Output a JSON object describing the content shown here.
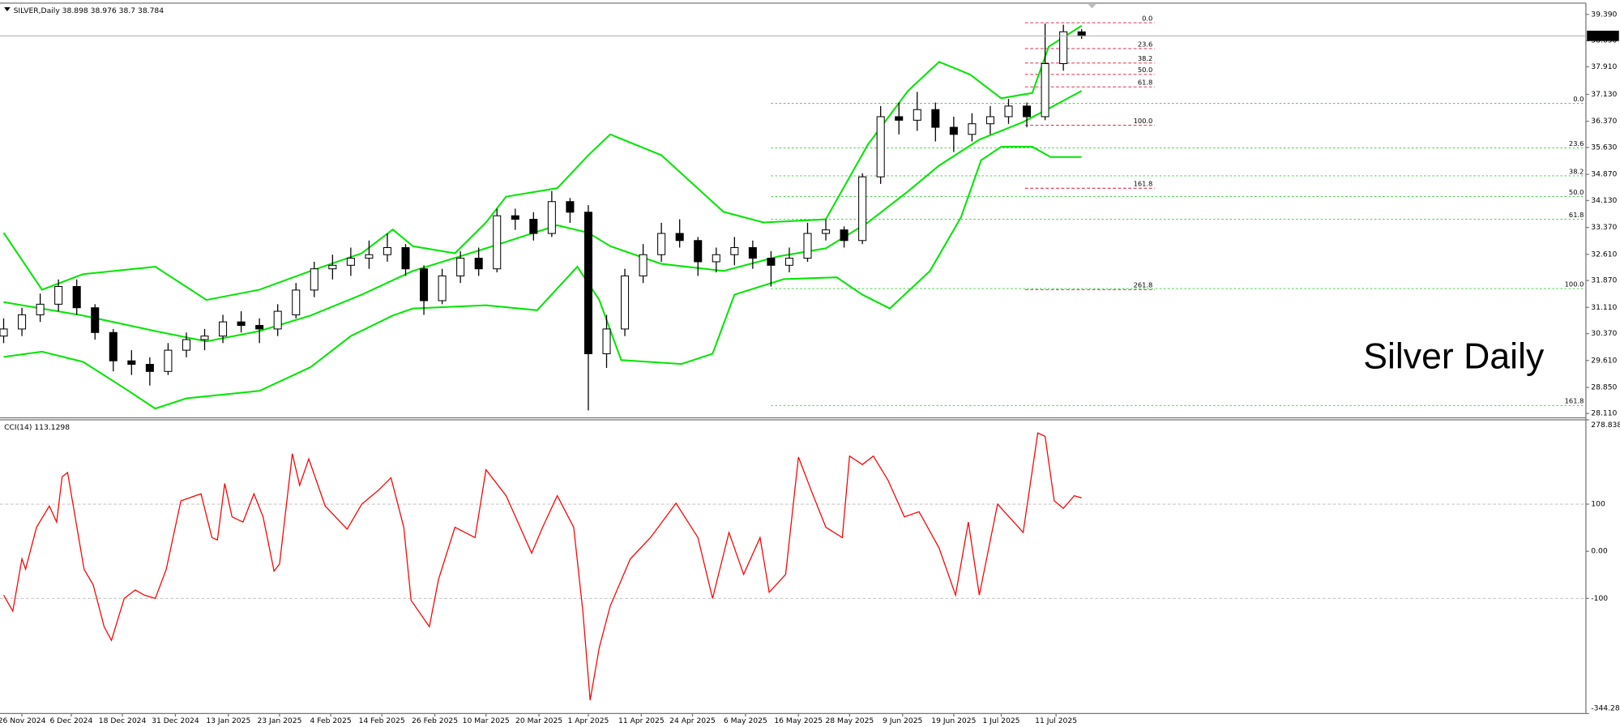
{
  "chart_data": [
    {
      "type": "candlestick",
      "symbol": "SILVER,Daily",
      "annotation": "Silver Daily",
      "xlim": [
        -0.2,
        86.6
      ],
      "ylim": [
        27.99,
        39.71
      ],
      "yticks": [
        {
          "value": 39.39,
          "label": "39.390"
        },
        {
          "value": 38.65,
          "label": "38.650"
        },
        {
          "value": 37.91,
          "label": "37.910"
        },
        {
          "value": 37.13,
          "label": "37.130"
        },
        {
          "value": 36.37,
          "label": "36.370"
        },
        {
          "value": 35.63,
          "label": "35.630"
        },
        {
          "value": 34.87,
          "label": "34.870"
        },
        {
          "value": 34.13,
          "label": "34.130"
        },
        {
          "value": 33.37,
          "label": "33.370"
        },
        {
          "value": 32.61,
          "label": "32.610"
        },
        {
          "value": 31.87,
          "label": "31.870"
        },
        {
          "value": 31.11,
          "label": "31.110"
        },
        {
          "value": 30.37,
          "label": "30.370"
        },
        {
          "value": 29.61,
          "label": "29.610"
        },
        {
          "value": 28.85,
          "label": "28.850"
        },
        {
          "value": 28.11,
          "label": "28.110"
        }
      ],
      "up_color": "#ffffff",
      "down_color": "#000000",
      "line_color": "#000000",
      "open": [
        30.3,
        30.5,
        30.9,
        31.2,
        31.7,
        31.1,
        30.4,
        29.6,
        29.5,
        29.3,
        29.9,
        30.2,
        30.3,
        30.7,
        30.6,
        30.5,
        30.9,
        31.6,
        32.2,
        32.3,
        32.5,
        32.6,
        32.8,
        32.2,
        31.3,
        32.0,
        32.5,
        32.2,
        33.7,
        33.6,
        33.2,
        34.1,
        33.8,
        29.8,
        30.5,
        32.0,
        32.6,
        33.2,
        33.0,
        32.4,
        32.6,
        32.8,
        32.5,
        32.3,
        32.5,
        33.2,
        33.3,
        33.0,
        34.8,
        36.5,
        36.4,
        36.7,
        36.2,
        36.0,
        36.3,
        36.5,
        36.8,
        36.5,
        38.0,
        38.898
      ],
      "high": [
        30.8,
        31.1,
        31.5,
        31.9,
        31.9,
        31.2,
        30.5,
        29.9,
        29.7,
        30.1,
        30.4,
        30.5,
        30.9,
        31.0,
        30.8,
        31.2,
        31.8,
        32.4,
        32.6,
        32.8,
        33.0,
        33.2,
        32.9,
        32.3,
        32.2,
        32.7,
        32.8,
        33.9,
        33.9,
        33.8,
        34.4,
        34.2,
        34.0,
        30.9,
        32.2,
        32.9,
        33.5,
        33.6,
        33.1,
        32.8,
        33.1,
        33.0,
        32.7,
        32.8,
        33.5,
        33.6,
        33.4,
        34.9,
        36.8,
        36.9,
        37.2,
        36.9,
        36.5,
        36.6,
        36.8,
        37.0,
        36.9,
        39.13,
        39.1,
        38.976
      ],
      "low": [
        30.1,
        30.3,
        30.7,
        31.0,
        30.9,
        30.2,
        29.3,
        29.2,
        28.9,
        29.2,
        29.7,
        29.9,
        30.1,
        30.4,
        30.1,
        30.3,
        30.8,
        31.4,
        31.9,
        32.0,
        32.2,
        32.4,
        32.0,
        30.9,
        31.2,
        31.8,
        32.0,
        32.1,
        33.3,
        33.0,
        33.1,
        33.5,
        28.2,
        29.4,
        30.3,
        31.8,
        32.4,
        32.8,
        32.0,
        32.1,
        32.3,
        32.2,
        31.7,
        32.1,
        32.4,
        33.0,
        32.8,
        32.9,
        34.6,
        36.0,
        36.1,
        35.8,
        35.5,
        35.8,
        36.0,
        36.3,
        36.2,
        36.4,
        37.8,
        38.7
      ],
      "close": [
        30.5,
        30.9,
        31.2,
        31.7,
        31.1,
        30.4,
        29.6,
        29.5,
        29.3,
        29.9,
        30.2,
        30.3,
        30.7,
        30.6,
        30.5,
        31.0,
        31.6,
        32.2,
        32.3,
        32.5,
        32.6,
        32.8,
        32.2,
        31.3,
        32.0,
        32.5,
        32.2,
        33.7,
        33.6,
        33.2,
        34.1,
        33.8,
        29.8,
        30.5,
        32.0,
        32.6,
        33.2,
        33.0,
        32.4,
        32.6,
        32.8,
        32.5,
        32.3,
        32.5,
        33.2,
        33.3,
        33.0,
        34.8,
        36.5,
        36.4,
        36.7,
        36.2,
        36.0,
        36.3,
        36.5,
        36.8,
        36.5,
        38.0,
        38.9,
        38.784
      ],
      "bands": [
        {
          "color": "#00e600",
          "x": [
            0,
            2.1,
            4.35,
            8.3,
            11.1,
            14.0,
            16.8,
            19.6,
            21.3,
            22.4,
            24.7,
            26.4,
            27.5,
            30.3,
            32.0,
            33.2,
            36.0,
            39.4,
            41.6,
            45.0,
            47.3,
            49.5,
            51.2,
            52.9,
            54.6,
            56.3,
            57.2,
            59.0
          ],
          "values": [
            33.22,
            31.61,
            32.05,
            32.26,
            31.32,
            31.61,
            32.14,
            32.64,
            33.31,
            32.84,
            32.64,
            33.51,
            34.24,
            34.48,
            35.41,
            36.0,
            35.41,
            33.81,
            33.51,
            33.6,
            35.71,
            37.23,
            38.05,
            37.69,
            37.02,
            37.17,
            38.48,
            39.07
          ]
        },
        {
          "color": "#00e600",
          "x": [
            0,
            4.35,
            8.3,
            11.1,
            14.0,
            16.8,
            19.6,
            22.4,
            26.4,
            30.3,
            32.0,
            33.2,
            36.0,
            39.4,
            42.4,
            45.0,
            47.3,
            49.5,
            51.2,
            53.4,
            55.8,
            57.2,
            59.0
          ],
          "values": [
            31.26,
            30.88,
            30.44,
            30.15,
            30.44,
            30.88,
            31.47,
            32.14,
            32.78,
            33.43,
            33.22,
            32.84,
            32.34,
            32.14,
            32.55,
            32.78,
            33.51,
            34.39,
            35.12,
            35.85,
            36.35,
            36.73,
            37.23
          ]
        },
        {
          "color": "#00e600",
          "x": [
            0,
            2.1,
            4.35,
            6.6,
            8.3,
            10.0,
            14.0,
            16.8,
            19.0,
            21.3,
            22.4,
            26.4,
            29.2,
            31.4,
            32.6,
            33.8,
            37.1,
            38.8,
            40.0,
            42.7,
            45.6,
            47.0,
            48.5,
            50.7,
            52.4,
            53.5,
            54.6,
            56.3,
            57.3,
            59.0
          ],
          "values": [
            29.71,
            29.86,
            29.57,
            28.83,
            28.25,
            28.54,
            28.75,
            29.42,
            30.3,
            30.88,
            31.08,
            31.17,
            31.03,
            32.26,
            31.32,
            29.62,
            29.51,
            29.8,
            31.47,
            31.91,
            31.96,
            31.47,
            31.08,
            32.14,
            33.66,
            35.27,
            35.65,
            35.65,
            35.36,
            35.36
          ]
        }
      ],
      "fib_sets": [
        {
          "color": "#dc143c",
          "dash": "3,2",
          "from": 55.9,
          "to": 63.0,
          "levels": [
            {
              "label": "0.0",
              "price": 39.156
            },
            {
              "label": "23.6",
              "price": 38.425
            },
            {
              "label": "38.2",
              "price": 38.016
            },
            {
              "label": "50.0",
              "price": 37.694
            },
            {
              "label": "61.8",
              "price": 37.343
            },
            {
              "label": "100.0",
              "price": 36.261
            },
            {
              "label": "161.8",
              "price": 34.478
            },
            {
              "label": "261.8",
              "price": 31.612
            }
          ]
        },
        {
          "color": "#32cd32",
          "dash": "2,2",
          "from": 42.0,
          "to": 86.6,
          "levels": [
            {
              "label": "0.0",
              "price": 36.875
            },
            {
              "label": "23.6",
              "price": 35.618
            },
            {
              "label": "38.2",
              "price": 34.829
            },
            {
              "label": "50.0",
              "price": 34.244
            },
            {
              "label": "61.8",
              "price": 33.6
            },
            {
              "label": "100.0",
              "price": 31.641
            },
            {
              "label": "161.8",
              "price": 28.337
            }
          ]
        }
      ]
    },
    {
      "type": "line",
      "title": "CCI(14)",
      "color": "#ff0000",
      "xlim": [
        -0.2,
        86.6
      ],
      "ylim": [
        -344.283,
        278.8385
      ],
      "yticks": [
        278.8385,
        100,
        {
          "value": 0,
          "label": "0.00"
        },
        -100,
        -344.283
      ],
      "levels": [
        100,
        -100
      ],
      "xticks": [
        {
          "value": 1.0,
          "label": "26 Nov 2024"
        },
        {
          "value": 3.7,
          "label": "6 Dec 2024"
        },
        {
          "value": 6.5,
          "label": "18 Dec 2024"
        },
        {
          "value": 9.4,
          "label": "31 Dec 2024"
        },
        {
          "value": 12.3,
          "label": "13 Jan 2025"
        },
        {
          "value": 15.1,
          "label": "23 Jan 2025"
        },
        {
          "value": 17.9,
          "label": "4 Feb 2025"
        },
        {
          "value": 20.7,
          "label": "14 Feb 2025"
        },
        {
          "value": 23.6,
          "label": "26 Feb 2025"
        },
        {
          "value": 26.4,
          "label": "10 Mar 2025"
        },
        {
          "value": 29.3,
          "label": "20 Mar 2025"
        },
        {
          "value": 32.0,
          "label": "1 Apr 2025"
        },
        {
          "value": 34.9,
          "label": "11 Apr 2025"
        },
        {
          "value": 37.7,
          "label": "24 Apr 2025"
        },
        {
          "value": 40.6,
          "label": "6 May 2025"
        },
        {
          "value": 43.5,
          "label": "16 May 2025"
        },
        {
          "value": 46.3,
          "label": "28 May 2025"
        },
        {
          "value": 49.2,
          "label": "9 Jun 2025"
        },
        {
          "value": 52.0,
          "label": "19 Jun 2025"
        },
        {
          "value": 54.6,
          "label": "1 Jul 2025"
        },
        {
          "value": 57.6,
          "label": "11 Jul 2025"
        }
      ],
      "x": [
        0,
        0.5,
        1.0,
        1.2,
        1.8,
        2.5,
        2.9,
        3.2,
        3.5,
        4.4,
        4.9,
        5.5,
        5.9,
        6.6,
        7.2,
        7.7,
        8.3,
        8.9,
        9.7,
        10.8,
        11.4,
        11.7,
        12.1,
        12.5,
        13.1,
        13.7,
        14.2,
        14.8,
        15.1,
        15.8,
        16.2,
        16.7,
        17.6,
        18.8,
        19.6,
        20.5,
        21.2,
        21.9,
        22.3,
        23.3,
        23.8,
        24.7,
        25.8,
        26.4,
        27.5,
        28.9,
        29.5,
        30.3,
        31.2,
        31.7,
        32.1,
        32.6,
        33.2,
        34.3,
        35.4,
        36.8,
        38.0,
        38.8,
        39.7,
        40.5,
        41.4,
        41.9,
        42.8,
        43.5,
        44.2,
        45.0,
        45.9,
        46.3,
        47.0,
        47.6,
        48.4,
        49.3,
        50.1,
        51.2,
        52.1,
        52.8,
        53.4,
        54.4,
        55.8,
        56.6,
        57.0,
        57.5,
        58.0,
        58.6,
        59.0
      ],
      "values": [
        -93,
        -127,
        -16,
        -38,
        51,
        96,
        62,
        158,
        167,
        -38,
        -71,
        -160,
        -189,
        -100,
        -82,
        -93,
        -100,
        -38,
        107,
        122,
        29,
        24,
        144,
        73,
        62,
        122,
        73,
        -42,
        -27,
        207,
        140,
        196,
        96,
        47,
        100,
        129,
        156,
        51,
        -104,
        -160,
        -60,
        51,
        29,
        173,
        118,
        -4,
        51,
        118,
        51,
        -127,
        -316,
        -204,
        -116,
        -16,
        29,
        102,
        29,
        -100,
        40,
        -49,
        29,
        -87,
        -49,
        200,
        129,
        51,
        29,
        202,
        184,
        202,
        151,
        73,
        84,
        7,
        -93,
        62,
        -93,
        100,
        40,
        251,
        244,
        107,
        91,
        118,
        113.1298
      ]
    }
  ]
}
